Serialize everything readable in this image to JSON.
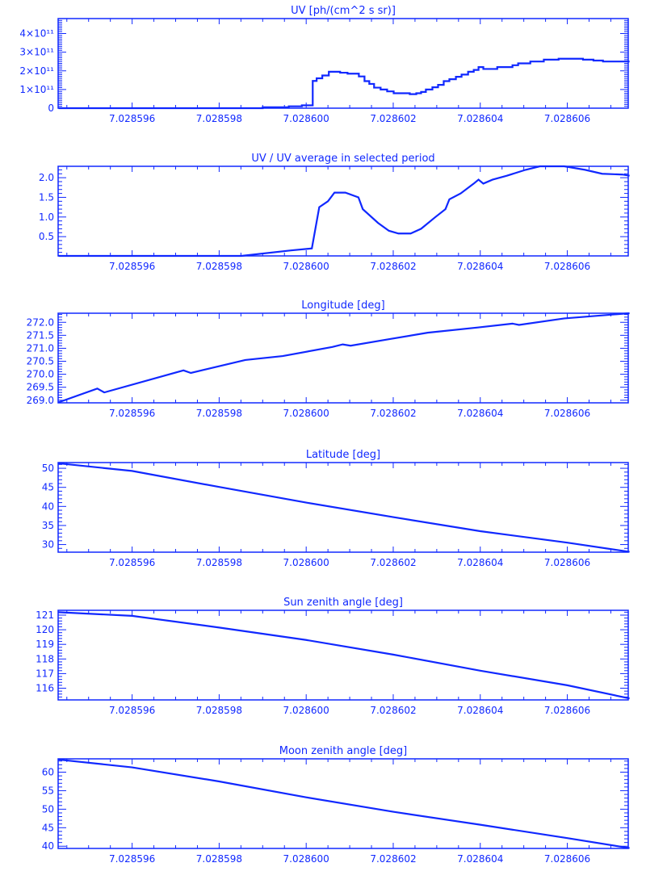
{
  "color": "#1028ff",
  "background": "#ffffff",
  "chart_data": [
    {
      "type": "line",
      "step": true,
      "title": "UV [ph/(cm^2 s sr)]",
      "xlim": [
        7.0285943,
        7.0286074
      ],
      "ylim": [
        0,
        480000000000.0
      ],
      "xticks": [
        7.028596,
        7.028598,
        7.0286,
        7.028602,
        7.028604,
        7.028606
      ],
      "xtick_labels": [
        "7.028596",
        "7.028598",
        "7.028600",
        "7.028602",
        "7.028604",
        "7.028606"
      ],
      "yticks": [
        0,
        100000000000.0,
        200000000000.0,
        300000000000.0,
        400000000000.0
      ],
      "ytick_labels": [
        "0",
        "1×10¹¹",
        "2×10¹¹",
        "3×10¹¹",
        "4×10¹¹"
      ],
      "x": [
        7.02859431,
        7.028599,
        7.0285996,
        7.0285999,
        7.02860015,
        7.02860024,
        7.02860037,
        7.02860052,
        7.02860078,
        7.02860095,
        7.02860121,
        7.02860134,
        7.02860145,
        7.02860156,
        7.02860171,
        7.02860186,
        7.02860201,
        7.02860238,
        7.02860253,
        7.02860264,
        7.02860275,
        7.0286029,
        7.02860303,
        7.02860316,
        7.02860329,
        7.02860344,
        7.02860357,
        7.02860372,
        7.02860385,
        7.02860396,
        7.02860407,
        7.02860439,
        7.02860474,
        7.02860487,
        7.02860515,
        7.02860546,
        7.0286058,
        7.02860615,
        7.02860636,
        7.0286066,
        7.02860682,
        7.02860743
      ],
      "y": [
        0,
        5000000000.0,
        10000000000.0,
        15000000000.0,
        146000000000.0,
        160000000000.0,
        175000000000.0,
        195000000000.0,
        190000000000.0,
        185000000000.0,
        170000000000.0,
        145000000000.0,
        130000000000.0,
        110000000000.0,
        100000000000.0,
        90000000000.0,
        80000000000.0,
        75000000000.0,
        80000000000.0,
        87000000000.0,
        100000000000.0,
        112000000000.0,
        125000000000.0,
        145000000000.0,
        155000000000.0,
        168000000000.0,
        180000000000.0,
        195000000000.0,
        205000000000.0,
        220000000000.0,
        210000000000.0,
        220000000000.0,
        230000000000.0,
        240000000000.0,
        250000000000.0,
        260000000000.0,
        265000000000.0,
        265000000000.0,
        260000000000.0,
        255000000000.0,
        250000000000.0,
        250000000000.0
      ]
    },
    {
      "type": "line",
      "title": "UV / UV average in selected period",
      "xlim": [
        7.0285943,
        7.0286074
      ],
      "ylim": [
        0.01,
        2.29
      ],
      "xticks": [
        7.028596,
        7.028598,
        7.0286,
        7.028602,
        7.028604,
        7.028606
      ],
      "xtick_labels": [
        "7.028596",
        "7.028598",
        "7.028600",
        "7.028602",
        "7.028604",
        "7.028606"
      ],
      "yticks": [
        0.5,
        1.0,
        1.5,
        2.0
      ],
      "ytick_labels": [
        "0.5",
        "1.0",
        "1.5",
        "2.0"
      ],
      "x": [
        7.02859431,
        7.02859851,
        7.02859965,
        7.02860013,
        7.0286003,
        7.0286005,
        7.02860065,
        7.0286009,
        7.0286012,
        7.0286013,
        7.02860165,
        7.0286019,
        7.02860212,
        7.0286024,
        7.02860264,
        7.02860297,
        7.0286032,
        7.02860329,
        7.02860355,
        7.02860385,
        7.02860396,
        7.02860407,
        7.02860428,
        7.02860461,
        7.02860504,
        7.02860537,
        7.02860593,
        7.02860641,
        7.0286068,
        7.02860727,
        7.02860743
      ],
      "y": [
        0.01,
        0.01,
        0.15,
        0.2,
        1.25,
        1.4,
        1.62,
        1.62,
        1.5,
        1.2,
        0.85,
        0.65,
        0.58,
        0.58,
        0.7,
        1.0,
        1.2,
        1.45,
        1.6,
        1.85,
        1.95,
        1.85,
        1.95,
        2.05,
        2.2,
        2.29,
        2.29,
        2.2,
        2.1,
        2.08,
        2.05
      ]
    },
    {
      "type": "line",
      "title": "Longitude [deg]",
      "xlim": [
        7.0285943,
        7.0286074
      ],
      "ylim": [
        268.9,
        272.35
      ],
      "xticks": [
        7.028596,
        7.028598,
        7.0286,
        7.028602,
        7.028604,
        7.028606
      ],
      "xtick_labels": [
        "7.028596",
        "7.028598",
        "7.028600",
        "7.028602",
        "7.028604",
        "7.028606"
      ],
      "yticks": [
        269.0,
        269.5,
        270.0,
        270.5,
        271.0,
        271.5,
        272.0
      ],
      "ytick_labels": [
        "269.0",
        "269.5",
        "270.0",
        "270.5",
        "271.0",
        "271.5",
        "272.0"
      ],
      "x": [
        7.02859431,
        7.0285952,
        7.02859536,
        7.02859718,
        7.02859735,
        7.0285986,
        7.02859946,
        7.0286006,
        7.02860084,
        7.02860102,
        7.0286019,
        7.02860279,
        7.02860394,
        7.02860474,
        7.02860489,
        7.02860593,
        7.02860743
      ],
      "y": [
        268.92,
        269.45,
        269.3,
        270.15,
        270.05,
        270.55,
        270.7,
        271.05,
        271.15,
        271.1,
        271.35,
        271.6,
        271.8,
        271.95,
        271.9,
        272.15,
        272.35
      ]
    },
    {
      "type": "line",
      "title": "Latitude [deg]",
      "xlim": [
        7.0285943,
        7.0286074
      ],
      "ylim": [
        28.0,
        51.5
      ],
      "xticks": [
        7.028596,
        7.028598,
        7.0286,
        7.028602,
        7.028604,
        7.028606
      ],
      "xtick_labels": [
        "7.028596",
        "7.028598",
        "7.028600",
        "7.028602",
        "7.028604",
        "7.028606"
      ],
      "yticks": [
        30,
        35,
        40,
        45,
        50
      ],
      "ytick_labels": [
        "30",
        "35",
        "40",
        "45",
        "50"
      ],
      "x": [
        7.02859431,
        7.028596,
        7.028598,
        7.0286,
        7.028602,
        7.028604,
        7.028606,
        7.02860743
      ],
      "y": [
        51.3,
        49.3,
        45.1,
        41.0,
        37.2,
        33.5,
        30.5,
        28.1
      ]
    },
    {
      "type": "line",
      "title": "Sun zenith angle [deg]",
      "xlim": [
        7.0285943,
        7.0286074
      ],
      "ylim": [
        115.2,
        121.33
      ],
      "xticks": [
        7.028596,
        7.028598,
        7.0286,
        7.028602,
        7.028604,
        7.028606
      ],
      "xtick_labels": [
        "7.028596",
        "7.028598",
        "7.028600",
        "7.028602",
        "7.028604",
        "7.028606"
      ],
      "yticks": [
        116,
        117,
        118,
        119,
        120,
        121
      ],
      "ytick_labels": [
        "116",
        "117",
        "118",
        "119",
        "120",
        "121"
      ],
      "x": [
        7.02859431,
        7.028596,
        7.028598,
        7.0286,
        7.028602,
        7.028604,
        7.028606,
        7.02860743
      ],
      "y": [
        121.2,
        120.95,
        120.15,
        119.3,
        118.3,
        117.2,
        116.2,
        115.3
      ]
    },
    {
      "type": "line",
      "title": "Moon zenith angle [deg]",
      "xlim": [
        7.0285943,
        7.0286074
      ],
      "ylim": [
        39.4,
        63.6
      ],
      "xticks": [
        7.028596,
        7.028598,
        7.0286,
        7.028602,
        7.028604,
        7.028606
      ],
      "xtick_labels": [
        "7.028596",
        "7.028598",
        "7.028600",
        "7.028602",
        "7.028604",
        "7.028606"
      ],
      "yticks": [
        40,
        45,
        50,
        55,
        60
      ],
      "ytick_labels": [
        "40",
        "45",
        "50",
        "55",
        "60"
      ],
      "x": [
        7.02859431,
        7.028596,
        7.028598,
        7.0286,
        7.028602,
        7.028604,
        7.028606,
        7.02860743
      ],
      "y": [
        63.4,
        61.3,
        57.5,
        53.2,
        49.3,
        45.8,
        42.2,
        39.5
      ]
    }
  ]
}
